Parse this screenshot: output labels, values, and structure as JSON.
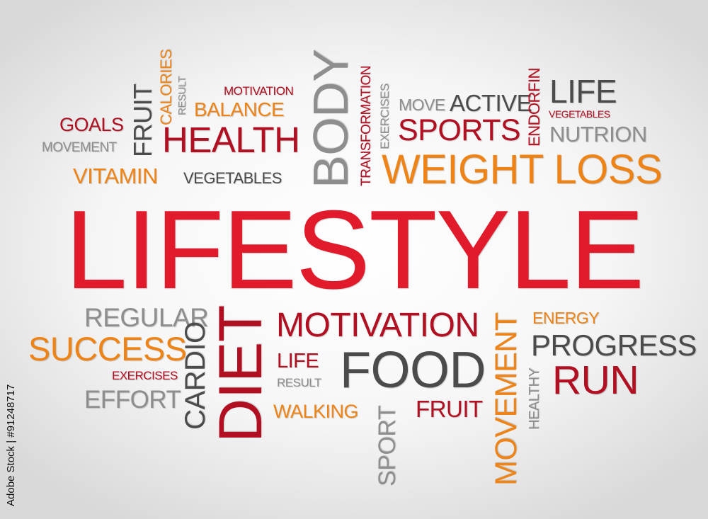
{
  "colors": {
    "red": "#e11b2b",
    "crimson": "#b10f22",
    "orange": "#ee8418",
    "gray": "#8e8e8e",
    "dark": "#4b4b4b"
  },
  "stock_id": "Adobe Stock | #91248717",
  "words": [
    {
      "text": "LIFESTYLE",
      "color": "red"
    },
    {
      "text": "GOALS",
      "color": "crimson"
    },
    {
      "text": "MOVEMENT",
      "color": "gray"
    },
    {
      "text": "VITAMIN",
      "color": "orange"
    },
    {
      "text": "VEGETABLES",
      "color": "dark"
    },
    {
      "text": "FRUIT",
      "color": "dark"
    },
    {
      "text": "CALORIES",
      "color": "orange"
    },
    {
      "text": "RESULT",
      "color": "gray"
    },
    {
      "text": "MOTIVATION",
      "color": "crimson"
    },
    {
      "text": "BALANCE",
      "color": "orange"
    },
    {
      "text": "HEALTH",
      "color": "crimson"
    },
    {
      "text": "BODY",
      "color": "gray"
    },
    {
      "text": "TRANSFORMATION",
      "color": "crimson"
    },
    {
      "text": "EXERCISES",
      "color": "gray"
    },
    {
      "text": "MOVE",
      "color": "gray"
    },
    {
      "text": "ACTIVE",
      "color": "dark"
    },
    {
      "text": "SPORTS",
      "color": "crimson"
    },
    {
      "text": "ENDORFIN",
      "color": "crimson"
    },
    {
      "text": "LIFE",
      "color": "dark"
    },
    {
      "text": "VEGETABLES",
      "color": "crimson"
    },
    {
      "text": "NUTRION",
      "color": "gray"
    },
    {
      "text": "WEIGHT LOSS",
      "color": "orange"
    },
    {
      "text": "REGULAR",
      "color": "gray"
    },
    {
      "text": "SUCCESS",
      "color": "orange"
    },
    {
      "text": "EXERCISES",
      "color": "crimson"
    },
    {
      "text": "EFFORT",
      "color": "gray"
    },
    {
      "text": "CARDIO",
      "color": "dark"
    },
    {
      "text": "DIET",
      "color": "crimson"
    },
    {
      "text": "MOTIVATION",
      "color": "crimson"
    },
    {
      "text": "LIFE",
      "color": "crimson"
    },
    {
      "text": "RESULT",
      "color": "gray"
    },
    {
      "text": "FOOD",
      "color": "dark"
    },
    {
      "text": "WALKING",
      "color": "orange"
    },
    {
      "text": "FRUIT",
      "color": "crimson"
    },
    {
      "text": "SPORT",
      "color": "gray"
    },
    {
      "text": "MOVEMENT",
      "color": "orange"
    },
    {
      "text": "HEALTHY",
      "color": "gray"
    },
    {
      "text": "ENERGY",
      "color": "orange"
    },
    {
      "text": "PROGRESS",
      "color": "dark"
    },
    {
      "text": "RUN",
      "color": "crimson"
    }
  ]
}
